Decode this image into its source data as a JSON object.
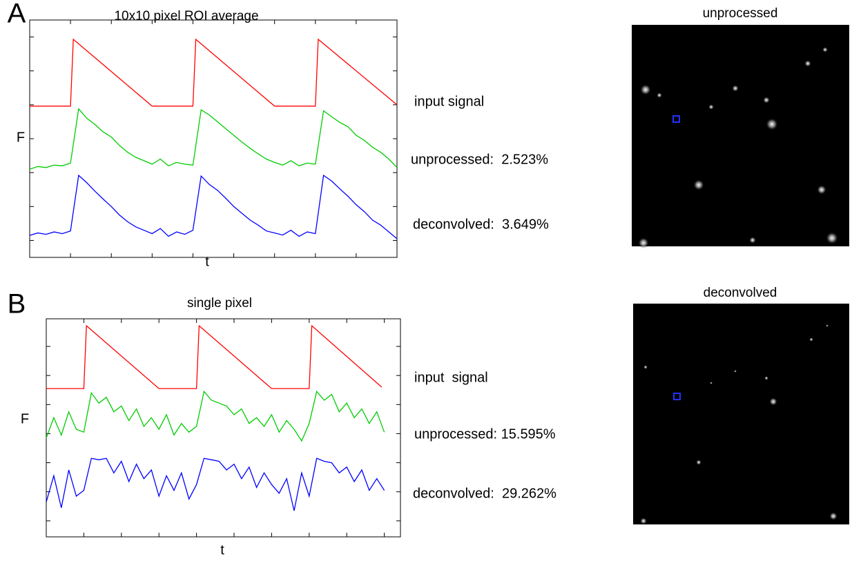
{
  "chart_data": [
    {
      "type": "line",
      "panel": "A",
      "title": "10x10 pixel ROI average",
      "ylabel": "F",
      "xlabel": "t",
      "xlim": [
        0,
        9
      ],
      "xticks": [
        0,
        1,
        2,
        3,
        4,
        5,
        6,
        7,
        8,
        9
      ],
      "ylim": [
        0,
        7
      ],
      "yticks": [
        0.5,
        1.5,
        2.5,
        3.5,
        4.5,
        5.5,
        6.5
      ],
      "annotations": [
        "input signal",
        "unprocessed:  2.523%",
        "deconvolved:  3.649%"
      ],
      "x": [
        0,
        0.2,
        0.4,
        0.6,
        0.8,
        1,
        1.2,
        1.4,
        1.6,
        1.8,
        2,
        2.2,
        2.4,
        2.6,
        2.8,
        3,
        3.2,
        3.4,
        3.6,
        3.8,
        4,
        4.2,
        4.4,
        4.6,
        4.8,
        5,
        5.2,
        5.4,
        5.6,
        5.8,
        6,
        6.2,
        6.4,
        6.6,
        6.8,
        7,
        7.2,
        7.4,
        7.6,
        7.8,
        8,
        8.2,
        8.4,
        8.6,
        8.8,
        9
      ],
      "series": [
        {
          "color": "#ff0000",
          "x": [
            0,
            1,
            1.07,
            3,
            4,
            4.07,
            6,
            7,
            7.07,
            9
          ],
          "values": [
            4.46,
            4.46,
            6.43,
            4.46,
            4.46,
            6.43,
            4.46,
            4.46,
            6.43,
            4.5
          ]
        },
        {
          "color": "#00cc00",
          "values": [
            2.6,
            2.68,
            2.65,
            2.72,
            2.7,
            2.78,
            4.38,
            4.1,
            3.92,
            3.7,
            3.55,
            3.3,
            3.1,
            2.95,
            2.85,
            2.75,
            2.9,
            2.7,
            2.8,
            2.75,
            2.72,
            4.35,
            4.2,
            4.0,
            3.8,
            3.6,
            3.4,
            3.22,
            3.05,
            2.9,
            2.8,
            2.72,
            2.85,
            2.7,
            2.78,
            2.75,
            4.32,
            4.15,
            3.98,
            3.85,
            3.6,
            3.45,
            3.25,
            3.1,
            2.9,
            2.65
          ]
        },
        {
          "color": "#0000ff",
          "values": [
            0.65,
            0.72,
            0.68,
            0.75,
            0.7,
            0.78,
            2.42,
            2.2,
            1.95,
            1.72,
            1.5,
            1.25,
            1.05,
            0.9,
            0.8,
            0.7,
            0.85,
            0.62,
            0.75,
            0.68,
            0.8,
            2.4,
            2.15,
            1.98,
            1.75,
            1.5,
            1.3,
            1.1,
            0.95,
            0.78,
            0.72,
            0.66,
            0.8,
            0.62,
            0.75,
            0.7,
            2.42,
            2.25,
            2.02,
            1.8,
            1.55,
            1.35,
            1.1,
            0.95,
            0.75,
            0.55
          ]
        }
      ]
    },
    {
      "type": "line",
      "panel": "B",
      "title": "single pixel",
      "ylabel": "F",
      "xlabel": "t",
      "xlim": [
        0,
        9.43
      ],
      "xticks": [
        0,
        1,
        2,
        3,
        4,
        5,
        6,
        7,
        8,
        9
      ],
      "ylim": [
        0,
        7.5
      ],
      "yticks": [
        0.55,
        1.55,
        2.55,
        3.55,
        4.55,
        5.55,
        6.55
      ],
      "annotations": [
        "input  signal",
        "unprocessed: 15.595%",
        "deconvolved:  29.262%"
      ],
      "x": [
        0,
        0.2,
        0.4,
        0.6,
        0.8,
        1,
        1.2,
        1.4,
        1.6,
        1.8,
        2,
        2.2,
        2.4,
        2.6,
        2.8,
        3,
        3.2,
        3.4,
        3.6,
        3.8,
        4,
        4.2,
        4.4,
        4.6,
        4.8,
        5,
        5.2,
        5.4,
        5.6,
        5.8,
        6,
        6.2,
        6.4,
        6.6,
        6.8,
        7,
        7.2,
        7.4,
        7.6,
        7.8,
        8,
        8.2,
        8.4,
        8.6,
        8.8,
        9
      ],
      "series": [
        {
          "color": "#ff0000",
          "x": [
            0,
            1,
            1.07,
            3,
            4,
            4.07,
            6,
            7,
            7.07,
            8.93
          ],
          "values": [
            5.1,
            5.1,
            7.26,
            5.1,
            5.1,
            7.26,
            5.1,
            5.1,
            7.26,
            5.15
          ]
        },
        {
          "color": "#00cc00",
          "values": [
            3.4,
            4.1,
            3.5,
            4.3,
            3.7,
            3.6,
            4.95,
            4.6,
            4.8,
            4.3,
            4.5,
            4.0,
            4.4,
            3.8,
            4.1,
            3.7,
            4.2,
            3.5,
            3.9,
            3.6,
            3.8,
            5.0,
            4.7,
            4.6,
            4.5,
            4.2,
            4.4,
            3.9,
            4.1,
            3.8,
            4.2,
            3.6,
            4.0,
            3.7,
            3.3,
            3.9,
            5.0,
            4.7,
            4.9,
            4.3,
            4.6,
            4.1,
            4.4,
            3.9,
            4.3,
            3.6
          ]
        },
        {
          "color": "#0000ff",
          "values": [
            1.2,
            2.1,
            1.0,
            2.3,
            1.4,
            1.6,
            2.7,
            2.65,
            2.7,
            2.2,
            2.6,
            1.9,
            2.5,
            2.0,
            2.3,
            1.4,
            2.1,
            1.6,
            2.2,
            1.3,
            1.8,
            2.7,
            2.65,
            2.6,
            2.3,
            2.5,
            2.0,
            2.4,
            1.7,
            2.2,
            1.8,
            1.5,
            2.0,
            0.9,
            2.2,
            1.4,
            2.7,
            2.6,
            2.55,
            2.2,
            2.4,
            1.9,
            2.3,
            1.6,
            2.0,
            1.6
          ]
        }
      ]
    }
  ],
  "images": [
    {
      "title": "unprocessed"
    },
    {
      "title": "deconvolved"
    }
  ]
}
